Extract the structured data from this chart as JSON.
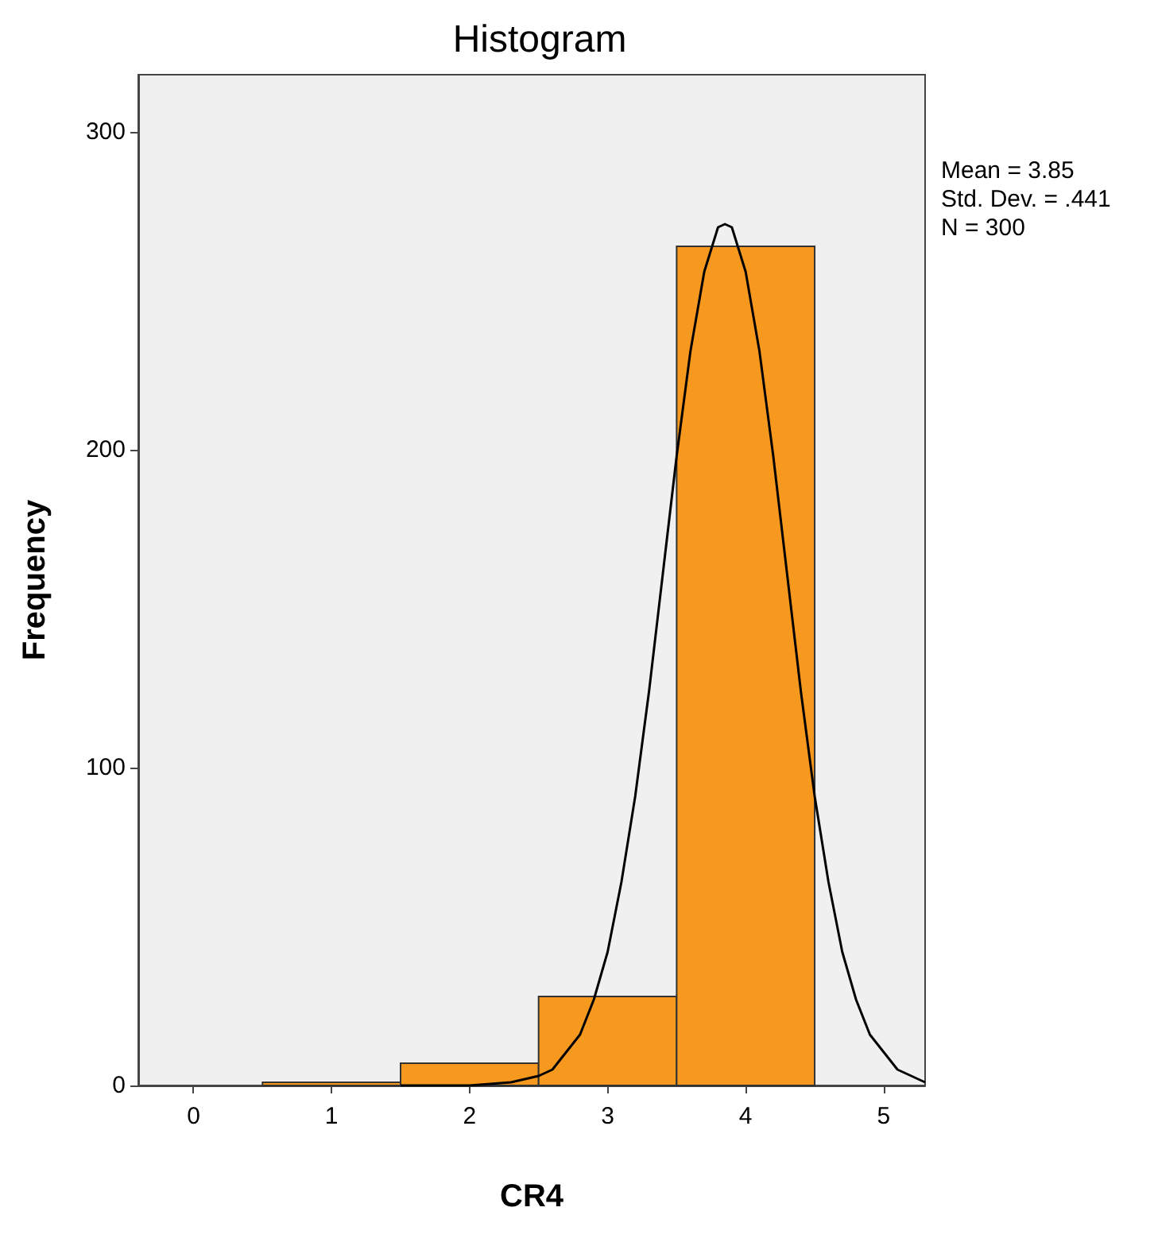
{
  "chart_data": {
    "type": "histogram",
    "title": "Histogram",
    "xlabel": "CR4",
    "ylabel": "Frequency",
    "annotations": [
      "Mean = 3.85",
      "Std. Dev. = .441",
      "N = 300"
    ],
    "series": [
      {
        "color": "#f7991f",
        "bins": [
          0.5,
          1.5,
          2.5,
          3.5,
          4.5
        ],
        "values": [
          1,
          7,
          28,
          264
        ]
      },
      {
        "type": "line",
        "color": "#000000",
        "x": [
          1.5,
          2.0,
          2.3,
          2.5,
          2.6,
          2.8,
          2.9,
          3.0,
          3.1,
          3.2,
          3.3,
          3.4,
          3.5,
          3.6,
          3.7,
          3.8,
          3.85,
          3.9,
          4.0,
          4.1,
          4.2,
          4.3,
          4.4,
          4.5,
          4.6,
          4.7,
          4.8,
          4.9,
          5.1,
          5.2,
          5.3
        ],
        "values": [
          0,
          0,
          1,
          3,
          5,
          16,
          27,
          42,
          64,
          91,
          124,
          161,
          198,
          231,
          256,
          270,
          271,
          270,
          256,
          231,
          198,
          161,
          124,
          91,
          64,
          42,
          27,
          16,
          5,
          3,
          1
        ]
      }
    ],
    "xlim": [
      -0.4,
      5.3
    ],
    "xticks": [
      0,
      1,
      2,
      3,
      4,
      5
    ],
    "ylim": [
      0,
      318
    ],
    "yticks": [
      0,
      100,
      200,
      300
    ],
    "grid": false
  }
}
